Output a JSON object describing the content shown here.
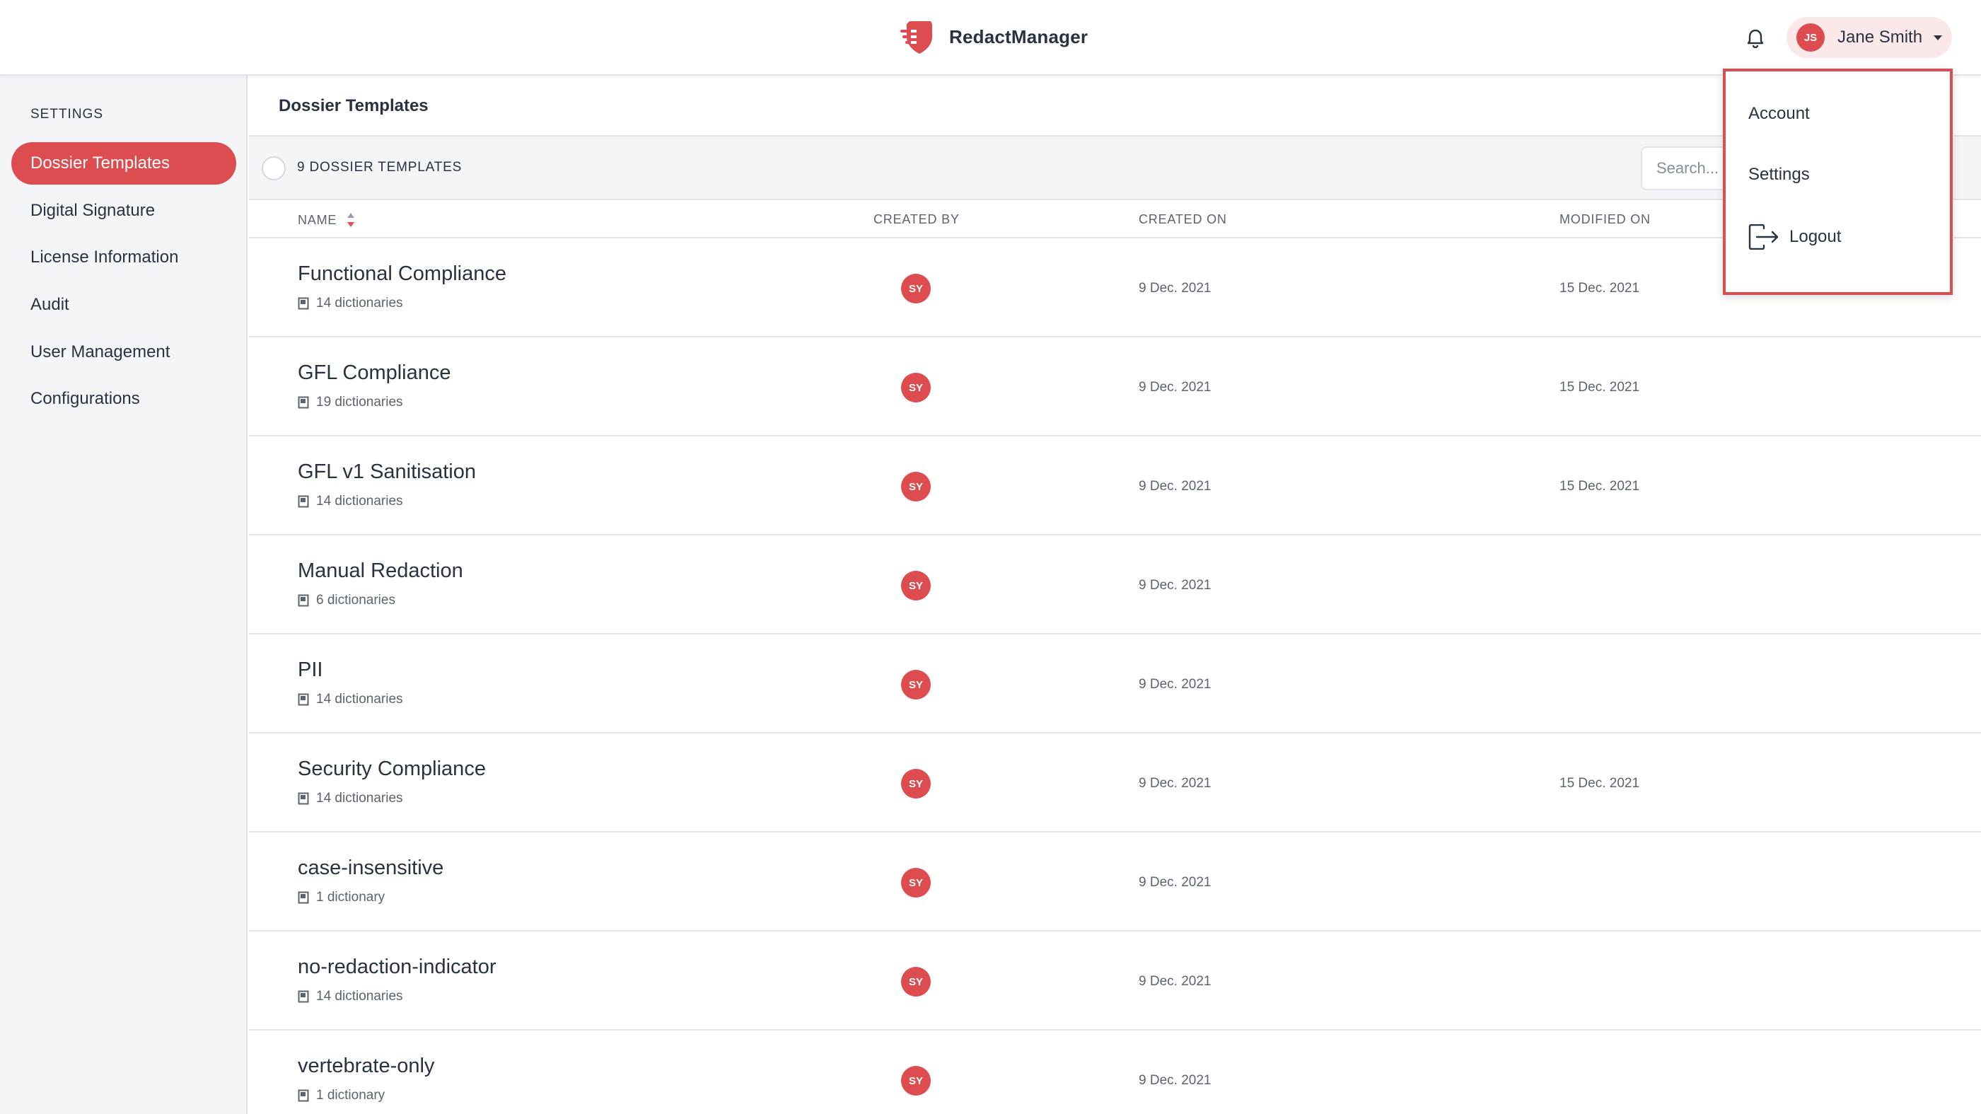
{
  "header": {
    "brand_name": "RedactManager",
    "user": {
      "initials": "JS",
      "name": "Jane Smith"
    }
  },
  "user_dropdown": {
    "items": [
      {
        "label": "Account"
      },
      {
        "label": "Settings"
      },
      {
        "label": "Logout"
      }
    ]
  },
  "sidebar": {
    "heading": "SETTINGS",
    "items": [
      {
        "label": "Dossier Templates",
        "active": true
      },
      {
        "label": "Digital Signature"
      },
      {
        "label": "License Information"
      },
      {
        "label": "Audit"
      },
      {
        "label": "User Management"
      },
      {
        "label": "Configurations"
      }
    ]
  },
  "main": {
    "title": "Dossier Templates",
    "count_label": "9 DOSSIER TEMPLATES",
    "search_placeholder": "Search...",
    "columns": {
      "name": "NAME",
      "created_by": "CREATED BY",
      "created_on": "CREATED ON",
      "modified_on": "MODIFIED ON"
    },
    "rows": [
      {
        "name": "Functional Compliance",
        "dictionaries": "14 dictionaries",
        "created_by": "SY",
        "created_on": "9 Dec. 2021",
        "modified_on": "15 Dec. 2021"
      },
      {
        "name": "GFL Compliance",
        "dictionaries": "19 dictionaries",
        "created_by": "SY",
        "created_on": "9 Dec. 2021",
        "modified_on": "15 Dec. 2021"
      },
      {
        "name": "GFL v1 Sanitisation",
        "dictionaries": "14 dictionaries",
        "created_by": "SY",
        "created_on": "9 Dec. 2021",
        "modified_on": "15 Dec. 2021"
      },
      {
        "name": "Manual Redaction",
        "dictionaries": "6 dictionaries",
        "created_by": "SY",
        "created_on": "9 Dec. 2021",
        "modified_on": ""
      },
      {
        "name": "PII",
        "dictionaries": "14 dictionaries",
        "created_by": "SY",
        "created_on": "9 Dec. 2021",
        "modified_on": ""
      },
      {
        "name": "Security Compliance",
        "dictionaries": "14 dictionaries",
        "created_by": "SY",
        "created_on": "9 Dec. 2021",
        "modified_on": "15 Dec. 2021"
      },
      {
        "name": "case-insensitive",
        "dictionaries": "1 dictionary",
        "created_by": "SY",
        "created_on": "9 Dec. 2021",
        "modified_on": ""
      },
      {
        "name": "no-redaction-indicator",
        "dictionaries": "14 dictionaries",
        "created_by": "SY",
        "created_on": "9 Dec. 2021",
        "modified_on": ""
      },
      {
        "name": "vertebrate-only",
        "dictionaries": "1 dictionary",
        "created_by": "SY",
        "created_on": "9 Dec. 2021",
        "modified_on": ""
      }
    ]
  },
  "icons": {
    "brand": "shield-logo-icon",
    "notifications": "bell-icon",
    "dropdown": "chevron-down-icon",
    "logout": "logout-icon",
    "sort": "sort-icon",
    "dictionary": "book-icon"
  },
  "colors": {
    "accent": "#dd4d50",
    "accent_light": "#fbe9ea",
    "text": "#283241",
    "muted": "#5c6370",
    "sidebar_bg": "#f4f5f7",
    "border": "#e2e4e9"
  }
}
